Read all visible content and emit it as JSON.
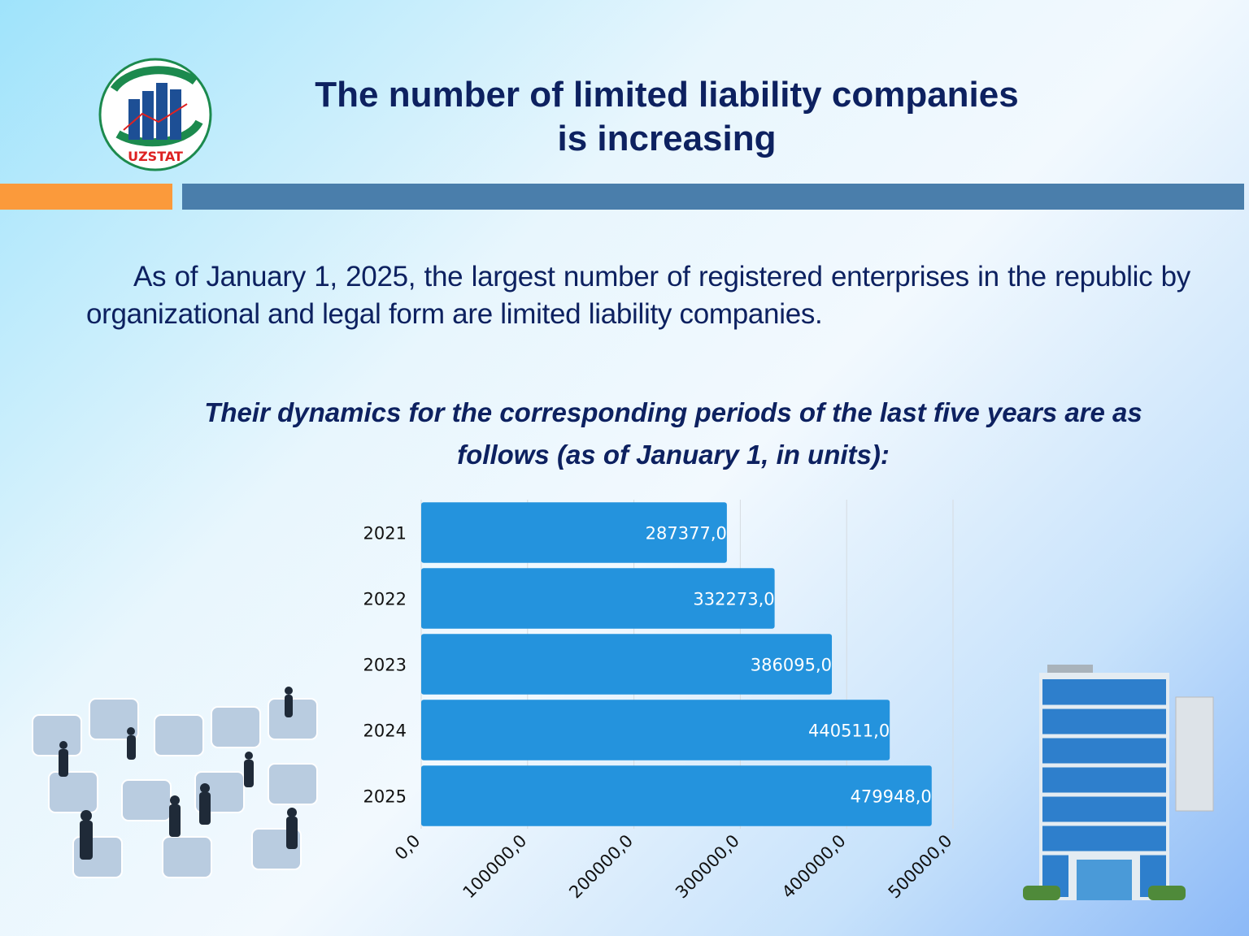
{
  "header": {
    "logo_text": "UZSTAT",
    "title_lines": [
      "The number of limited liability companies",
      "is increasing"
    ]
  },
  "paragraph": "As of January 1, 2025, the largest number of registered enterprises in the republic by organizational and legal form are limited liability companies.",
  "chart_data": {
    "type": "barh",
    "title": "Their dynamics for the corresponding periods of the last five years are as follows (as of January 1, in units):",
    "categories": [
      "2021",
      "2022",
      "2023",
      "2024",
      "2025"
    ],
    "values": [
      287377,
      332273,
      386095,
      440511,
      479948
    ],
    "value_labels": [
      "287377,0",
      "332273,0",
      "386095,0",
      "440511,0",
      "479948,0"
    ],
    "color": "#2493dd",
    "xlim": [
      0,
      500000
    ],
    "xticks": [
      {
        "value": 0,
        "label": "0,0"
      },
      {
        "value": 100000,
        "label": "100000,0"
      },
      {
        "value": 200000,
        "label": "200000,0"
      },
      {
        "value": 300000,
        "label": "300000,0"
      },
      {
        "value": 400000,
        "label": "400000,0"
      },
      {
        "value": 500000,
        "label": "500000,0"
      }
    ],
    "grid": true
  }
}
